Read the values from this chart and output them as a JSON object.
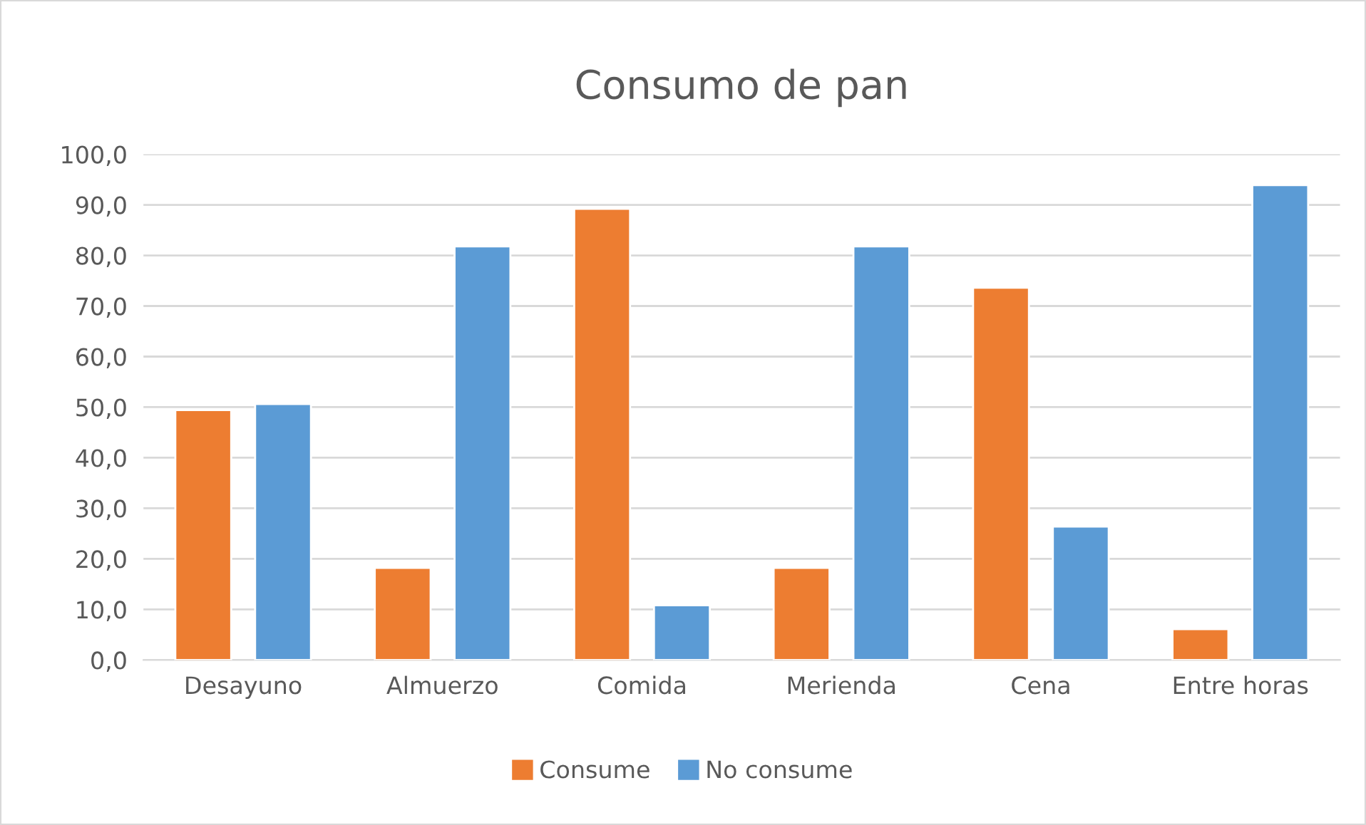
{
  "chart_data": {
    "type": "bar",
    "title": "Consumo de pan",
    "categories": [
      "Desayuno",
      "Almuerzo",
      "Comida",
      "Merienda",
      "Cena",
      "Entre horas"
    ],
    "series": [
      {
        "name": "Consume",
        "color": "#ed7d31",
        "values": [
          49.4,
          18.2,
          89.2,
          18.2,
          73.6,
          6.1
        ]
      },
      {
        "name": "No consume",
        "color": "#5b9bd5",
        "values": [
          50.6,
          81.8,
          10.8,
          81.8,
          26.4,
          93.9
        ]
      }
    ],
    "ylim": [
      0,
      100
    ],
    "yticks": [
      {
        "value": 0,
        "label": "0,0"
      },
      {
        "value": 10,
        "label": "10,0"
      },
      {
        "value": 20,
        "label": "20,0"
      },
      {
        "value": 30,
        "label": "30,0"
      },
      {
        "value": 40,
        "label": "40,0"
      },
      {
        "value": 50,
        "label": "50,0"
      },
      {
        "value": 60,
        "label": "60,0"
      },
      {
        "value": 70,
        "label": "70,0"
      },
      {
        "value": 80,
        "label": "80,0"
      },
      {
        "value": 90,
        "label": "90,0"
      },
      {
        "value": 100,
        "label": "100,0"
      }
    ],
    "grid": "y",
    "legend": "bottom"
  }
}
